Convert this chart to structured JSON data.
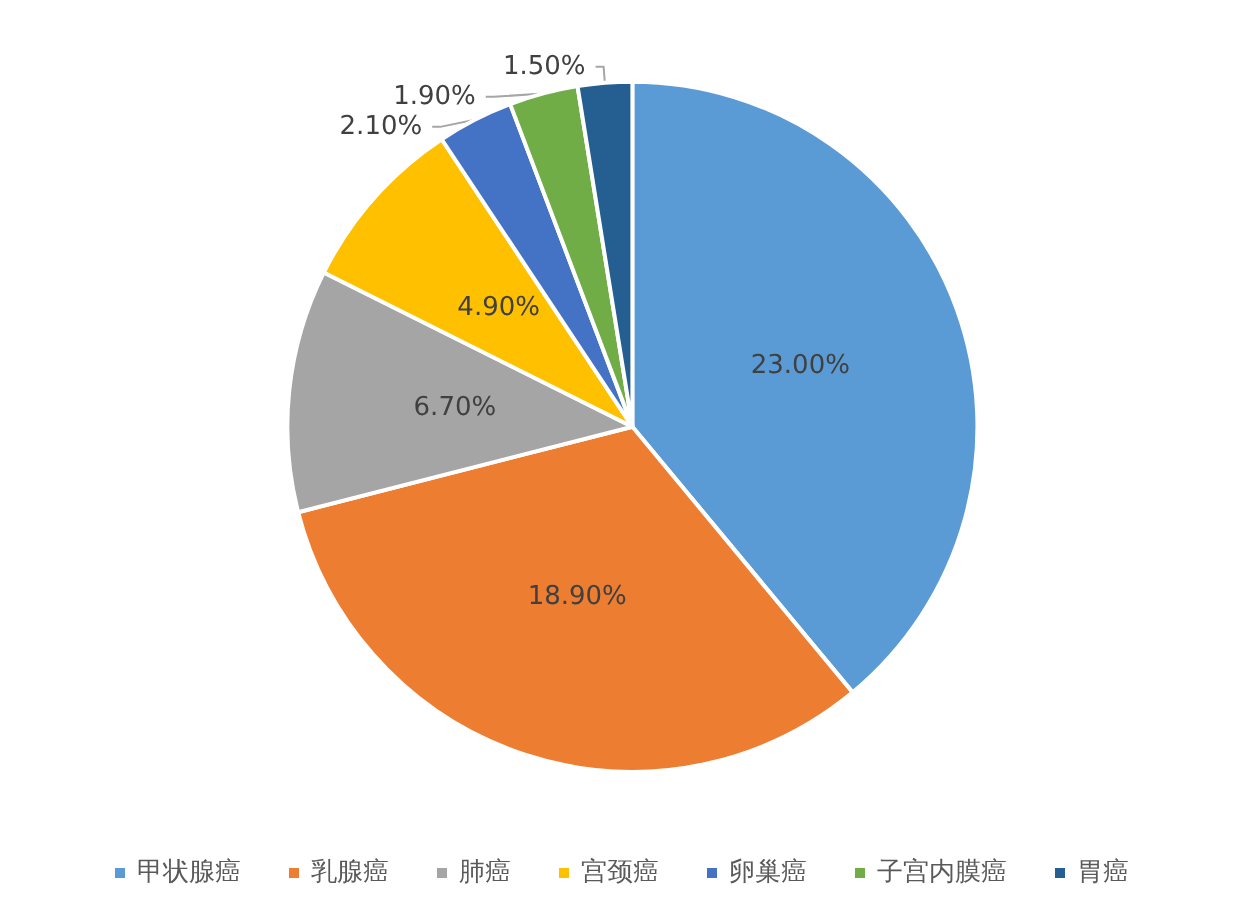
{
  "chart_data": {
    "type": "pie",
    "categories": [
      "甲状腺癌",
      "乳腺癌",
      "肺癌",
      "宫颈癌",
      "卵巢癌",
      "子宫内膜癌",
      "胃癌"
    ],
    "values": [
      23.0,
      18.9,
      6.7,
      4.9,
      2.1,
      1.9,
      1.5
    ],
    "value_labels": [
      "23.00%",
      "18.90%",
      "6.70%",
      "4.90%",
      "2.10%",
      "1.90%",
      "1.50%"
    ],
    "colors": [
      "#5b9bd5",
      "#ed7d31",
      "#a5a5a5",
      "#ffc000",
      "#4472c4",
      "#70ad47",
      "#255e91"
    ],
    "legend": "bottom"
  }
}
